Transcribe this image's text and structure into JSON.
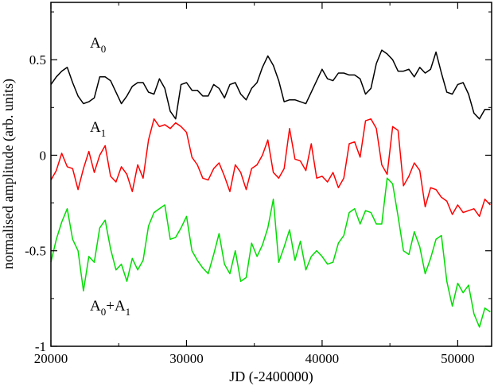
{
  "chart_data": {
    "type": "line",
    "xlabel": "JD (-2400000)",
    "ylabel": "normalised amplitude (arb. units)",
    "xlim": [
      20000,
      52500
    ],
    "ylim": [
      -1,
      0.8
    ],
    "xticks": [
      20000,
      30000,
      40000,
      50000
    ],
    "xtick_labels": [
      "20000",
      "30000",
      "40000",
      "50000"
    ],
    "yticks": [
      -1,
      -0.5,
      0,
      0.5
    ],
    "ytick_labels": [
      "-1",
      "-0.5",
      "0",
      "0.5"
    ],
    "grid": false,
    "series": [
      {
        "name": "A0",
        "label_main": "A",
        "label_sub": "0",
        "color": "#000000",
        "x": [
          20000,
          20400,
          20800,
          21200,
          21600,
          22000,
          22400,
          22800,
          23200,
          23600,
          24000,
          24400,
          24800,
          25200,
          25600,
          26000,
          26400,
          26800,
          27200,
          27600,
          28000,
          28400,
          28800,
          29200,
          29600,
          30000,
          30400,
          30800,
          31200,
          31600,
          32000,
          32400,
          32800,
          33200,
          33600,
          34000,
          34400,
          34800,
          35200,
          35600,
          36000,
          36400,
          36800,
          37200,
          37600,
          38000,
          38400,
          38800,
          39200,
          39600,
          40000,
          40400,
          40800,
          41200,
          41600,
          42000,
          42400,
          42800,
          43200,
          43600,
          44000,
          44400,
          44800,
          45200,
          45600,
          46000,
          46400,
          46800,
          47200,
          47600,
          48000,
          48400,
          48800,
          49200,
          49600,
          50000,
          50400,
          50800,
          51200,
          51600,
          52000,
          52400
        ],
        "y": [
          0.37,
          0.41,
          0.44,
          0.46,
          0.38,
          0.31,
          0.27,
          0.28,
          0.3,
          0.41,
          0.41,
          0.39,
          0.33,
          0.27,
          0.31,
          0.36,
          0.38,
          0.38,
          0.33,
          0.32,
          0.4,
          0.35,
          0.23,
          0.19,
          0.37,
          0.38,
          0.34,
          0.34,
          0.31,
          0.31,
          0.37,
          0.35,
          0.3,
          0.37,
          0.38,
          0.32,
          0.29,
          0.35,
          0.38,
          0.46,
          0.52,
          0.47,
          0.39,
          0.28,
          0.29,
          0.29,
          0.28,
          0.27,
          0.33,
          0.39,
          0.45,
          0.4,
          0.39,
          0.43,
          0.43,
          0.42,
          0.42,
          0.4,
          0.32,
          0.35,
          0.48,
          0.55,
          0.53,
          0.5,
          0.44,
          0.44,
          0.45,
          0.41,
          0.46,
          0.43,
          0.45,
          0.54,
          0.43,
          0.33,
          0.32,
          0.37,
          0.38,
          0.32,
          0.22,
          0.19,
          0.24,
          0.24
        ]
      },
      {
        "name": "A1",
        "label_main": "A",
        "label_sub": "1",
        "color": "#ff0000",
        "x": [
          20000,
          20400,
          20800,
          21200,
          21600,
          22000,
          22400,
          22800,
          23200,
          23600,
          24000,
          24400,
          24800,
          25200,
          25600,
          26000,
          26400,
          26800,
          27200,
          27600,
          28000,
          28400,
          28800,
          29200,
          29600,
          30000,
          30400,
          30800,
          31200,
          31600,
          32000,
          32400,
          32800,
          33200,
          33600,
          34000,
          34400,
          34800,
          35200,
          35600,
          36000,
          36400,
          36800,
          37200,
          37600,
          38000,
          38400,
          38800,
          39200,
          39600,
          40000,
          40400,
          40800,
          41200,
          41600,
          42000,
          42400,
          42800,
          43200,
          43600,
          44000,
          44400,
          44800,
          45200,
          45600,
          46000,
          46400,
          46800,
          47200,
          47600,
          48000,
          48400,
          48800,
          49200,
          49600,
          50000,
          50400,
          50800,
          51200,
          51600,
          52000,
          52400
        ],
        "y": [
          -0.13,
          -0.08,
          0.01,
          -0.06,
          -0.07,
          -0.18,
          -0.07,
          0.02,
          -0.09,
          0.0,
          0.05,
          -0.11,
          -0.14,
          -0.06,
          -0.1,
          -0.19,
          -0.05,
          -0.12,
          0.08,
          0.19,
          0.15,
          0.16,
          0.14,
          0.17,
          0.15,
          0.12,
          -0.01,
          -0.05,
          -0.12,
          -0.13,
          -0.07,
          -0.04,
          -0.11,
          -0.19,
          -0.05,
          -0.09,
          -0.18,
          -0.07,
          -0.05,
          0.0,
          0.08,
          -0.09,
          -0.12,
          -0.07,
          0.14,
          -0.02,
          -0.03,
          -0.08,
          0.06,
          -0.12,
          -0.11,
          -0.14,
          -0.09,
          -0.17,
          -0.12,
          0.06,
          0.07,
          -0.01,
          0.18,
          0.19,
          0.14,
          -0.05,
          -0.1,
          0.15,
          0.13,
          -0.16,
          -0.11,
          -0.04,
          -0.08,
          -0.27,
          -0.17,
          -0.18,
          -0.22,
          -0.24,
          -0.31,
          -0.26,
          -0.3,
          -0.29,
          -0.28,
          -0.32,
          -0.23,
          -0.26
        ]
      },
      {
        "name": "A0+A1",
        "label_main": "A",
        "label_sub": "0",
        "label_rest": "+A",
        "label_sub2": "1",
        "color": "#00dd00",
        "x": [
          20000,
          20400,
          20800,
          21200,
          21600,
          22000,
          22400,
          22800,
          23200,
          23600,
          24000,
          24400,
          24800,
          25200,
          25600,
          26000,
          26400,
          26800,
          27200,
          27600,
          28000,
          28400,
          28800,
          29200,
          29600,
          30000,
          30400,
          30800,
          31200,
          31600,
          32000,
          32400,
          32800,
          33200,
          33600,
          34000,
          34400,
          34800,
          35200,
          35600,
          36000,
          36400,
          36800,
          37200,
          37600,
          38000,
          38400,
          38800,
          39200,
          39600,
          40000,
          40400,
          40800,
          41200,
          41600,
          42000,
          42400,
          42800,
          43200,
          43600,
          44000,
          44400,
          44800,
          45200,
          45600,
          46000,
          46400,
          46800,
          47200,
          47600,
          48000,
          48400,
          48800,
          49200,
          49600,
          50000,
          50400,
          50800,
          51200,
          51600,
          52000,
          52400
        ],
        "y": [
          -0.56,
          -0.44,
          -0.35,
          -0.28,
          -0.44,
          -0.5,
          -0.71,
          -0.53,
          -0.56,
          -0.38,
          -0.34,
          -0.49,
          -0.6,
          -0.57,
          -0.66,
          -0.54,
          -0.6,
          -0.55,
          -0.37,
          -0.3,
          -0.28,
          -0.26,
          -0.44,
          -0.43,
          -0.38,
          -0.32,
          -0.5,
          -0.55,
          -0.59,
          -0.62,
          -0.52,
          -0.41,
          -0.57,
          -0.62,
          -0.5,
          -0.66,
          -0.64,
          -0.46,
          -0.53,
          -0.47,
          -0.38,
          -0.23,
          -0.56,
          -0.48,
          -0.39,
          -0.55,
          -0.45,
          -0.6,
          -0.53,
          -0.5,
          -0.53,
          -0.57,
          -0.56,
          -0.46,
          -0.42,
          -0.3,
          -0.28,
          -0.36,
          -0.29,
          -0.3,
          -0.36,
          -0.36,
          -0.12,
          -0.15,
          -0.32,
          -0.5,
          -0.52,
          -0.4,
          -0.48,
          -0.62,
          -0.54,
          -0.44,
          -0.42,
          -0.66,
          -0.79,
          -0.67,
          -0.72,
          -0.68,
          -0.83,
          -0.9,
          -0.8,
          -0.82
        ]
      }
    ]
  }
}
